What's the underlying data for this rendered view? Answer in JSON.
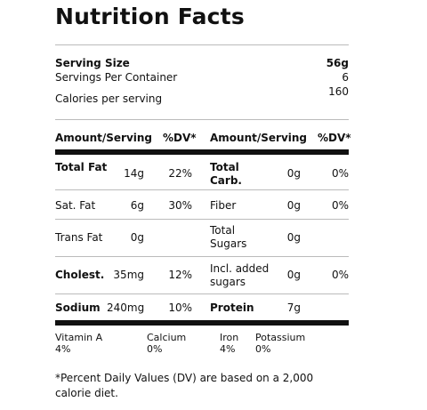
{
  "title": "Nutrition Facts",
  "serving": {
    "size_label": "Serving Size",
    "size_value": "56g",
    "per_container_label": "Servings Per Container",
    "per_container_value": "6",
    "calories_label": "Calories per serving",
    "calories_value": "160"
  },
  "header": {
    "amount_left": "Amount/Serving",
    "dv_left": "%DV*",
    "amount_right": "Amount/Serving",
    "dv_right": "%DV*"
  },
  "rows": {
    "total_fat": {
      "label": "Total Fat",
      "amount": "14g",
      "dv": "22%"
    },
    "total_carb": {
      "label": "Total Carb.",
      "amount": "0g",
      "dv": "0%"
    },
    "sat_fat": {
      "label": "Sat. Fat",
      "amount": "6g",
      "dv": "30%"
    },
    "fiber": {
      "label": "Fiber",
      "amount": "0g",
      "dv": "0%"
    },
    "trans_fat": {
      "label": "Trans Fat",
      "amount": "0g"
    },
    "total_sugars": {
      "label": "Total Sugars",
      "amount": "0g"
    },
    "cholest": {
      "label": "Cholest.",
      "amount": "35mg",
      "dv": "12%"
    },
    "added_sugars": {
      "label": "Incl. added sugars",
      "amount": "0g",
      "dv": "0%"
    },
    "sodium": {
      "label": "Sodium",
      "amount": "240mg",
      "dv": "10%"
    },
    "protein": {
      "label": "Protein",
      "amount": "7g"
    }
  },
  "vitamins": [
    {
      "name": "Vitamin A",
      "value": "4%"
    },
    {
      "name": "Calcium",
      "value": "0%"
    },
    {
      "name": "Iron",
      "value": "4%"
    },
    {
      "name": "Potassium",
      "value": "0%"
    }
  ],
  "footnote": "*Percent Daily Values (DV) are based on a 2,000 calorie diet."
}
